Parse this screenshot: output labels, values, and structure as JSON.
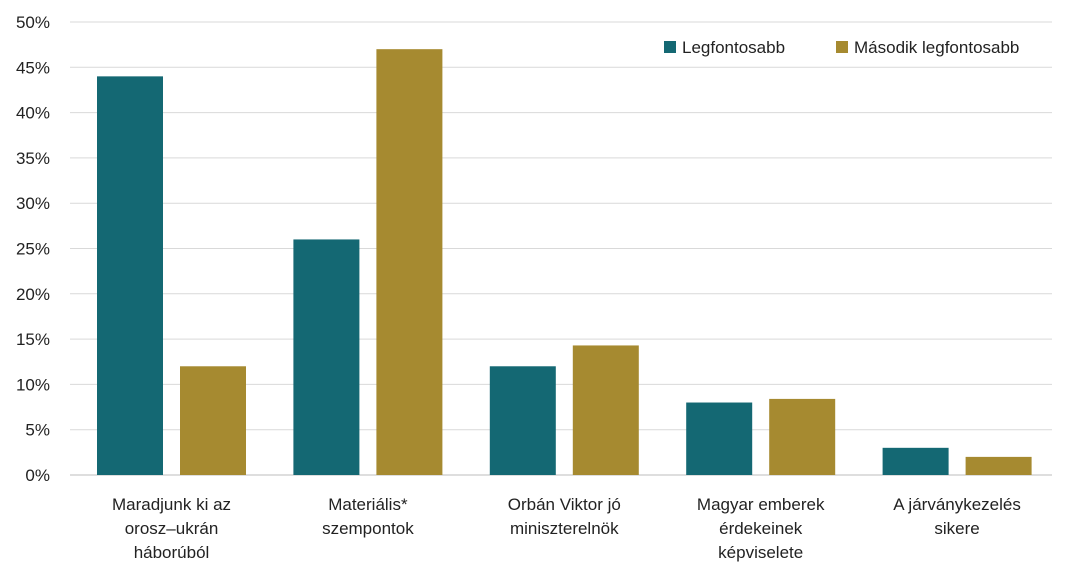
{
  "chart_data": {
    "type": "bar",
    "categories": [
      [
        "Maradjunk ki az",
        "orosz–ukrán",
        "háborúból"
      ],
      [
        "Materiális*",
        "szempontok"
      ],
      [
        "Orbán Viktor jó",
        "miniszterelnök"
      ],
      [
        "Magyar emberek",
        "érdekeinek",
        "képviselete"
      ],
      [
        "A járványkezelés",
        "sikere"
      ]
    ],
    "series": [
      {
        "name": "Legfontosabb",
        "color": "#146873",
        "values": [
          44,
          26,
          12,
          8,
          3
        ]
      },
      {
        "name": "Második legfontosabb",
        "color": "#A68A30",
        "values": [
          12,
          47,
          14.3,
          8.4,
          2
        ]
      }
    ],
    "y_ticks": [
      "0%",
      "5%",
      "10%",
      "15%",
      "20%",
      "25%",
      "30%",
      "35%",
      "40%",
      "45%",
      "50%"
    ],
    "ylim": [
      0,
      50
    ],
    "y_unit": "%",
    "grid": true,
    "legend_position": "top-right"
  }
}
